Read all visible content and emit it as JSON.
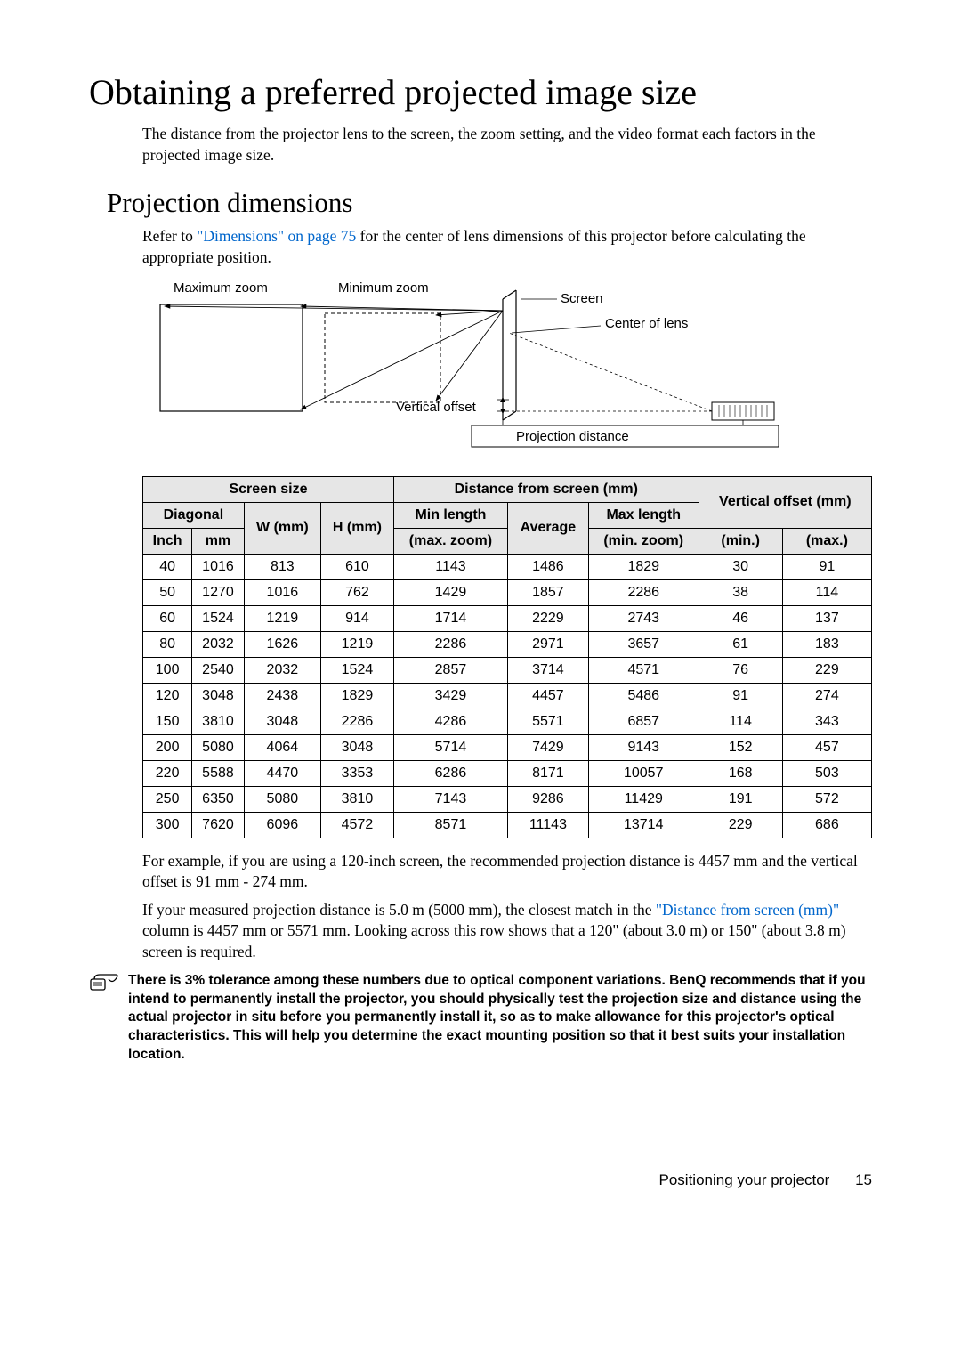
{
  "title": "Obtaining a preferred projected image size",
  "intro_para": "The distance from the projector lens to the screen, the zoom setting, and the video format each factors in the projected image size.",
  "subheading": "Projection dimensions",
  "refer_para_pre": "Refer to ",
  "refer_link": "\"Dimensions\" on page 75",
  "refer_para_post": " for the center of lens dimensions of this projector before calculating the appropriate position.",
  "diagram": {
    "max_zoom": "Maximum zoom",
    "min_zoom": "Minimum zoom",
    "screen": "Screen",
    "center_lens": "Center of lens",
    "vertical_offset": "Vertical offset",
    "projection_distance": "Projection distance"
  },
  "table": {
    "groups": {
      "screen_size": "Screen size",
      "distance": "Distance from screen (mm)",
      "voffset": "Vertical offset (mm)"
    },
    "headers": {
      "diagonal": "Diagonal",
      "w": "W (mm)",
      "h": "H (mm)",
      "minlen": "Min length",
      "average": "Average",
      "maxlen": "Max length",
      "inch": "Inch",
      "mm": "mm",
      "maxzoom": "(max. zoom)",
      "minzoom": "(min. zoom)",
      "min": "(min.)",
      "max": "(max.)"
    },
    "rows": [
      [
        "40",
        "1016",
        "813",
        "610",
        "1143",
        "1486",
        "1829",
        "30",
        "91"
      ],
      [
        "50",
        "1270",
        "1016",
        "762",
        "1429",
        "1857",
        "2286",
        "38",
        "114"
      ],
      [
        "60",
        "1524",
        "1219",
        "914",
        "1714",
        "2229",
        "2743",
        "46",
        "137"
      ],
      [
        "80",
        "2032",
        "1626",
        "1219",
        "2286",
        "2971",
        "3657",
        "61",
        "183"
      ],
      [
        "100",
        "2540",
        "2032",
        "1524",
        "2857",
        "3714",
        "4571",
        "76",
        "229"
      ],
      [
        "120",
        "3048",
        "2438",
        "1829",
        "3429",
        "4457",
        "5486",
        "91",
        "274"
      ],
      [
        "150",
        "3810",
        "3048",
        "2286",
        "4286",
        "5571",
        "6857",
        "114",
        "343"
      ],
      [
        "200",
        "5080",
        "4064",
        "3048",
        "5714",
        "7429",
        "9143",
        "152",
        "457"
      ],
      [
        "220",
        "5588",
        "4470",
        "3353",
        "6286",
        "8171",
        "10057",
        "168",
        "503"
      ],
      [
        "250",
        "6350",
        "5080",
        "3810",
        "7143",
        "9286",
        "11429",
        "191",
        "572"
      ],
      [
        "300",
        "7620",
        "6096",
        "4572",
        "8571",
        "11143",
        "13714",
        "229",
        "686"
      ]
    ]
  },
  "example_para": "For example, if you are using a 120-inch screen, the recommended projection distance is 4457 mm and the vertical offset is 91 mm - 274 mm.",
  "measured_pre": "If your measured projection distance is 5.0 m (5000 mm), the closest match in the ",
  "measured_link": "\"Distance from screen (mm)\"",
  "measured_post": " column is 4457 mm or 5571 mm. Looking across this row shows that a 120\" (about 3.0 m) or 150\" (about 3.8 m) screen is required.",
  "note_text": "There is 3% tolerance among these numbers due to optical component variations. BenQ recommends that if you intend to permanently install the projector, you should physically test the projection size and distance using the actual projector in situ before you permanently install it, so as to make allowance for this projector's optical characteristics. This will help you determine the exact mounting position so that it best suits your installation location.",
  "footer_text": "Positioning your projector",
  "page_number": "15",
  "colors": {
    "link": "#0066cc",
    "header_bg": "#e6e6e6",
    "border": "#000000",
    "text": "#000000"
  }
}
